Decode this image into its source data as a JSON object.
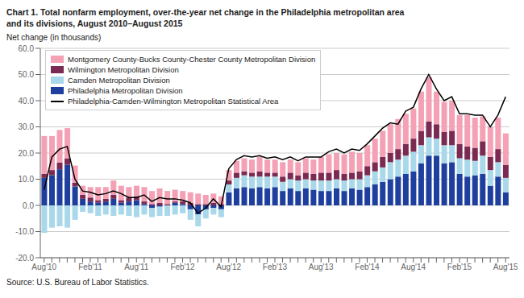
{
  "chart_data": {
    "type": "bar",
    "stacked": true,
    "title": "Chart 1. Total nonfarm employment, over-the-year net change in the Philadelphia metropolitan area\nand its divisions, August 2010–August 2015",
    "ylabel": "Net change (in thousands)",
    "annotations": [
      "Source: U.S. Bureau of Labor Statistics."
    ],
    "categories": [
      "Aug'10",
      null,
      null,
      null,
      null,
      null,
      "Feb'11",
      null,
      null,
      null,
      null,
      null,
      "Aug'11",
      null,
      null,
      null,
      null,
      null,
      "Feb'12",
      null,
      null,
      null,
      null,
      null,
      "Aug'12",
      null,
      null,
      null,
      null,
      null,
      "Feb'13",
      null,
      null,
      null,
      null,
      null,
      "Aug'13",
      null,
      null,
      null,
      null,
      null,
      "Feb'14",
      null,
      null,
      null,
      null,
      null,
      "Aug'14",
      null,
      null,
      null,
      null,
      null,
      "Feb'15",
      null,
      null,
      null,
      null,
      null,
      "Aug'15"
    ],
    "series": [
      {
        "name": "Philadelphia Metropolitan Division",
        "type": "bar",
        "color": "#1F3F9E",
        "values": [
          10.5,
          11.5,
          13.8,
          15.5,
          7.2,
          2.5,
          1.5,
          1.0,
          1.5,
          2.5,
          1.0,
          1.5,
          2.0,
          0.5,
          -1.0,
          -0.5,
          0.0,
          1.0,
          0.5,
          -1.5,
          -3.5,
          -1.5,
          -1.0,
          -1.5,
          5.0,
          6.5,
          7.0,
          6.5,
          7.0,
          6.5,
          7.0,
          5.5,
          6.5,
          5.5,
          6.5,
          6.0,
          5.5,
          5.5,
          6.5,
          5.5,
          6.5,
          6.0,
          7.0,
          8.0,
          9.0,
          10.0,
          11.0,
          12.0,
          13.0,
          16.0,
          19.0,
          19.0,
          16.0,
          16.5,
          12.0,
          11.0,
          11.5,
          12.0,
          7.5,
          11.0,
          5.0
        ]
      },
      {
        "name": "Camden Metropolitan Division",
        "type": "bar",
        "color": "#A8D8EA",
        "values": [
          -10.5,
          -8.5,
          -8.0,
          -8.5,
          -5.5,
          -2.5,
          -3.0,
          -4.0,
          -3.5,
          -4.0,
          -3.5,
          -4.0,
          -4.5,
          -3.5,
          -3.5,
          -3.5,
          -4.0,
          -3.5,
          -3.0,
          -4.0,
          -4.5,
          -3.5,
          -2.5,
          -3.0,
          3.0,
          4.0,
          4.5,
          4.5,
          4.0,
          4.5,
          4.0,
          3.5,
          3.5,
          4.0,
          3.5,
          3.5,
          4.0,
          4.0,
          3.5,
          4.0,
          3.5,
          4.0,
          4.5,
          5.0,
          5.5,
          6.5,
          6.5,
          7.0,
          7.5,
          7.0,
          7.0,
          6.5,
          7.0,
          6.5,
          6.0,
          6.5,
          5.5,
          7.0,
          6.0,
          5.5,
          5.5
        ]
      },
      {
        "name": "Wilmington Metropolitan Division",
        "type": "bar",
        "color": "#7B2A52",
        "values": [
          1.5,
          2.0,
          2.5,
          2.5,
          1.5,
          1.5,
          1.5,
          1.0,
          1.0,
          1.5,
          1.0,
          1.5,
          1.5,
          1.0,
          0.5,
          1.0,
          0.5,
          0.5,
          1.0,
          1.0,
          0.5,
          0.5,
          1.0,
          0.5,
          1.5,
          2.0,
          1.5,
          1.5,
          2.0,
          1.5,
          1.5,
          2.0,
          2.5,
          2.0,
          2.5,
          2.5,
          3.0,
          3.0,
          3.5,
          2.5,
          2.5,
          3.0,
          3.5,
          3.5,
          4.0,
          3.5,
          4.0,
          4.5,
          5.0,
          5.5,
          6.0,
          5.5,
          5.0,
          5.5,
          5.5,
          5.0,
          5.0,
          5.5,
          5.0,
          5.0,
          5.0
        ]
      },
      {
        "name": "Montgomery County-Bucks County-Chester County Metropolitan Division",
        "type": "bar",
        "color": "#F4A0B5",
        "values": [
          14.5,
          13.0,
          12.5,
          11.5,
          6.5,
          3.5,
          4.0,
          5.0,
          4.5,
          5.5,
          5.5,
          4.0,
          4.0,
          5.5,
          5.0,
          5.5,
          5.0,
          4.5,
          4.0,
          4.0,
          4.0,
          3.5,
          3.5,
          3.0,
          4.0,
          4.5,
          5.0,
          5.0,
          5.5,
          5.0,
          5.0,
          5.5,
          5.0,
          5.0,
          5.5,
          5.5,
          6.0,
          7.0,
          6.5,
          7.5,
          8.0,
          7.0,
          8.0,
          9.0,
          10.0,
          11.0,
          11.5,
          11.5,
          11.5,
          15.0,
          17.0,
          12.5,
          11.5,
          11.5,
          11.0,
          12.0,
          11.5,
          9.5,
          11.5,
          12.0,
          12.0
        ]
      },
      {
        "name": "Philadelphia-Camden-Wilmington Metropolitan Statistical Area",
        "type": "line",
        "color": "#000000",
        "values": [
          6.0,
          18.5,
          21.5,
          22.5,
          10.0,
          5.5,
          5.0,
          4.0,
          4.5,
          5.5,
          4.5,
          3.0,
          3.0,
          4.0,
          1.5,
          3.0,
          2.5,
          2.5,
          2.0,
          1.0,
          -3.0,
          -1.0,
          2.5,
          -0.5,
          14.0,
          17.5,
          19.0,
          18.5,
          19.0,
          18.0,
          18.5,
          17.5,
          18.5,
          17.0,
          18.5,
          18.5,
          18.5,
          20.5,
          21.5,
          20.0,
          21.5,
          21.0,
          23.5,
          26.5,
          29.5,
          31.5,
          31.0,
          36.0,
          37.5,
          44.5,
          50.0,
          44.5,
          40.0,
          41.5,
          35.0,
          35.0,
          34.5,
          34.5,
          30.0,
          34.5,
          41.5
        ]
      }
    ],
    "ylim": [
      -20.0,
      60.0
    ],
    "yticks": [
      {
        "value": -20,
        "label": "-20.0"
      },
      {
        "value": -10,
        "label": "-10.0"
      },
      {
        "value": 0,
        "label": "0.0"
      },
      {
        "value": 10,
        "label": "10.0"
      },
      {
        "value": 20,
        "label": "20.0"
      },
      {
        "value": 30,
        "label": "30.0"
      },
      {
        "value": 40,
        "label": "40.0"
      },
      {
        "value": 50,
        "label": "50.0"
      },
      {
        "value": 60,
        "label": "60.0"
      }
    ],
    "grid": true,
    "legend": "upper left"
  }
}
